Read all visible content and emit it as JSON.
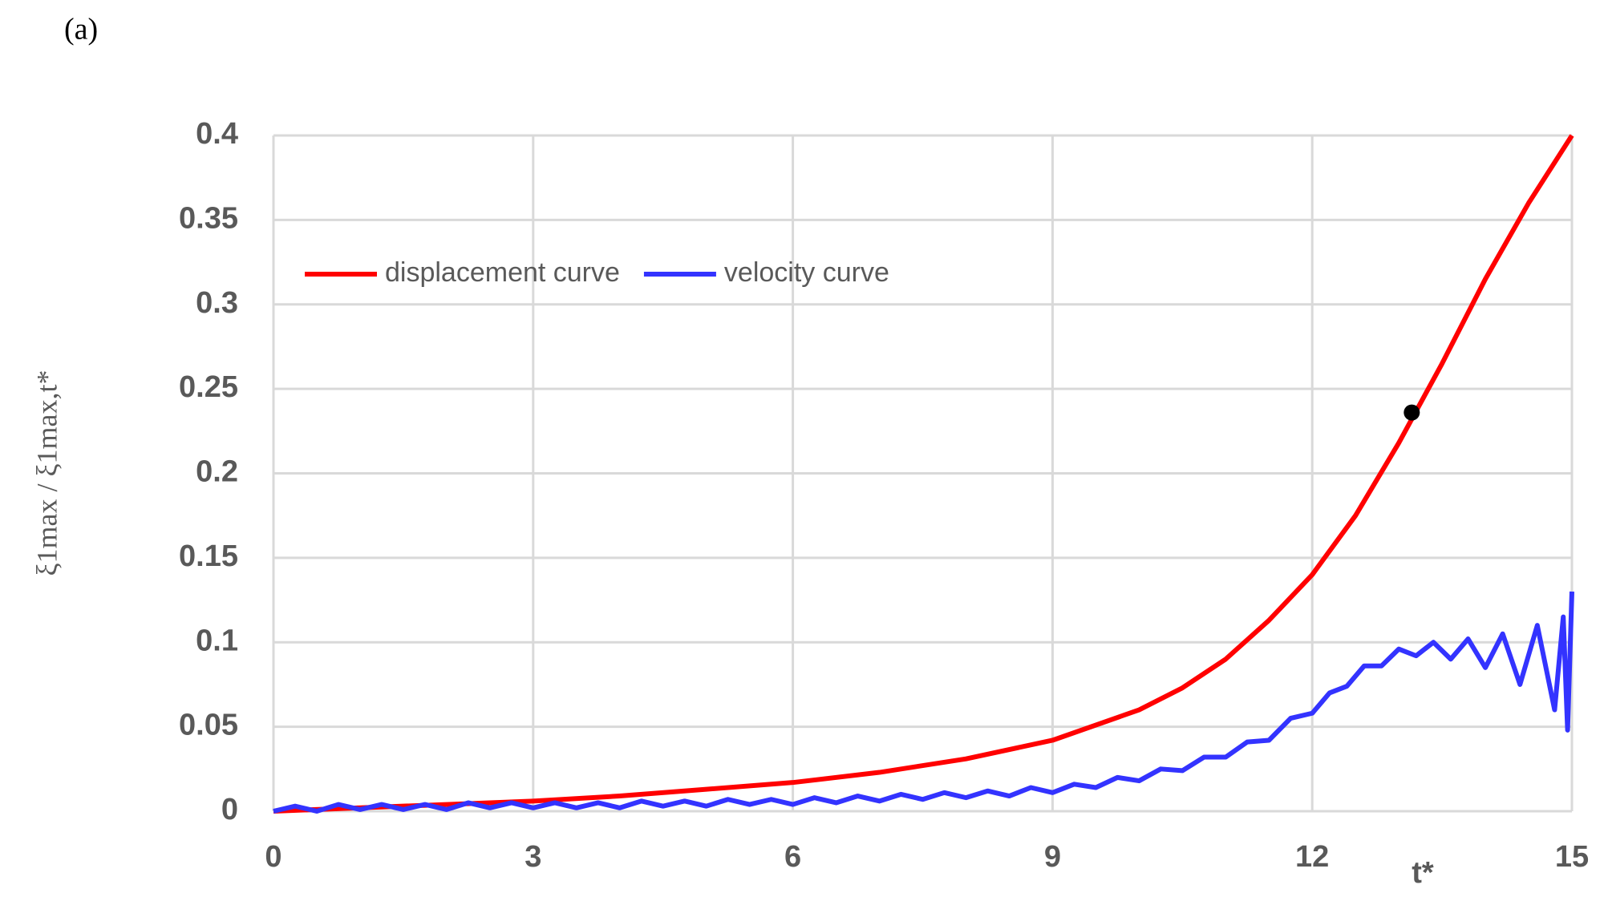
{
  "chart_data": {
    "type": "line",
    "panel_label": "(a)",
    "y_label": "ξ1max / ξ1max,t*",
    "x_label": "t*",
    "xlim": [
      0,
      15
    ],
    "xticks": [
      0,
      3,
      6,
      9,
      12,
      15
    ],
    "ylim": [
      0,
      0.4
    ],
    "yticks": [
      0,
      0.05,
      0.1,
      0.15,
      0.2,
      0.25,
      0.3,
      0.35,
      0.4
    ],
    "grid": true,
    "legend": "top-left",
    "series": [
      {
        "name": "displacement curve",
        "color": "#ff0000",
        "x": [
          0,
          1,
          2,
          3,
          4,
          5,
          6,
          7,
          8,
          9,
          10,
          10.5,
          11,
          11.5,
          12,
          12.5,
          13,
          13.5,
          14,
          14.5,
          15
        ],
        "values": [
          0,
          0.002,
          0.004,
          0.006,
          0.009,
          0.013,
          0.017,
          0.023,
          0.031,
          0.042,
          0.06,
          0.073,
          0.09,
          0.113,
          0.14,
          0.175,
          0.218,
          0.265,
          0.315,
          0.36,
          0.4
        ]
      },
      {
        "name": "velocity curve",
        "color": "#3333ff",
        "x": [
          0,
          0.25,
          0.5,
          0.75,
          1,
          1.25,
          1.5,
          1.75,
          2,
          2.25,
          2.5,
          2.75,
          3,
          3.25,
          3.5,
          3.75,
          4,
          4.25,
          4.5,
          4.75,
          5,
          5.25,
          5.5,
          5.75,
          6,
          6.25,
          6.5,
          6.75,
          7,
          7.25,
          7.5,
          7.75,
          8,
          8.25,
          8.5,
          8.75,
          9,
          9.25,
          9.5,
          9.75,
          10,
          10.25,
          10.5,
          10.75,
          11,
          11.25,
          11.5,
          11.75,
          12,
          12.2,
          12.4,
          12.6,
          12.8,
          13,
          13.2,
          13.4,
          13.6,
          13.8,
          14,
          14.2,
          14.4,
          14.6,
          14.8,
          14.9,
          14.95,
          15
        ],
        "values": [
          0,
          0.003,
          0,
          0.004,
          0.001,
          0.004,
          0.001,
          0.004,
          0.001,
          0.005,
          0.002,
          0.005,
          0.002,
          0.005,
          0.002,
          0.005,
          0.002,
          0.006,
          0.003,
          0.006,
          0.003,
          0.007,
          0.004,
          0.007,
          0.004,
          0.008,
          0.005,
          0.009,
          0.006,
          0.01,
          0.007,
          0.011,
          0.008,
          0.012,
          0.009,
          0.014,
          0.011,
          0.016,
          0.014,
          0.02,
          0.018,
          0.025,
          0.024,
          0.032,
          0.032,
          0.041,
          0.042,
          0.055,
          0.058,
          0.07,
          0.074,
          0.086,
          0.086,
          0.096,
          0.092,
          0.1,
          0.09,
          0.102,
          0.085,
          0.105,
          0.075,
          0.11,
          0.06,
          0.115,
          0.048,
          0.13
        ]
      }
    ],
    "marker": {
      "x": 13.15,
      "y": 0.236,
      "color": "#000000"
    }
  }
}
